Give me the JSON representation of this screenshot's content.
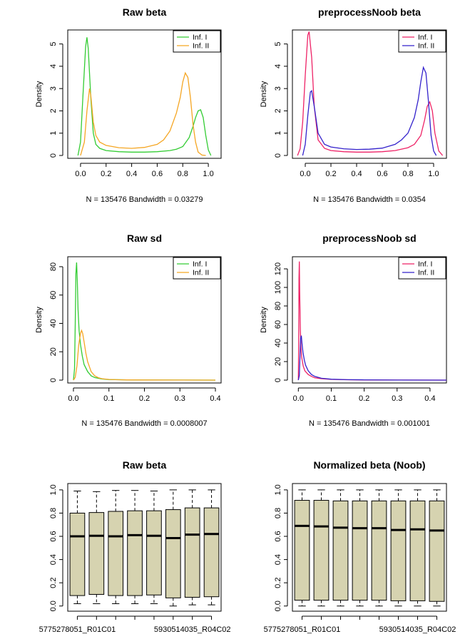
{
  "figure": {
    "background": "#ffffff"
  },
  "chart_data": [
    {
      "type": "density",
      "title": "Raw beta",
      "ylabel": "Density",
      "xlabel": "N = 135476   Bandwidth = 0.03279",
      "xlim": [
        -0.1,
        1.1
      ],
      "ylim": [
        0,
        5.5
      ],
      "xticks": [
        0.0,
        0.2,
        0.4,
        0.6,
        0.8,
        1.0
      ],
      "xtick_labels": [
        "0.0",
        "0.2",
        "0.4",
        "0.6",
        "0.8",
        "1.0"
      ],
      "yticks": [
        0,
        1,
        2,
        3,
        4,
        5
      ],
      "ytick_labels": [
        "0",
        "1",
        "2",
        "3",
        "4",
        "5"
      ],
      "legend_position": "top-right",
      "series": [
        {
          "name": "Inf. I",
          "color": "#33cc33",
          "x": [
            -0.02,
            0.0,
            0.02,
            0.04,
            0.05,
            0.06,
            0.08,
            0.1,
            0.12,
            0.15,
            0.2,
            0.3,
            0.4,
            0.5,
            0.6,
            0.7,
            0.75,
            0.8,
            0.85,
            0.88,
            0.9,
            0.92,
            0.94,
            0.96,
            0.98,
            1.0,
            1.02
          ],
          "y": [
            0.0,
            0.6,
            2.8,
            4.9,
            5.3,
            4.8,
            2.6,
            1.0,
            0.5,
            0.32,
            0.22,
            0.17,
            0.15,
            0.15,
            0.17,
            0.22,
            0.28,
            0.4,
            0.8,
            1.3,
            1.7,
            2.0,
            2.05,
            1.7,
            0.9,
            0.25,
            0.0
          ]
        },
        {
          "name": "Inf. II",
          "color": "#f5a623",
          "x": [
            0.0,
            0.03,
            0.05,
            0.07,
            0.08,
            0.1,
            0.12,
            0.15,
            0.2,
            0.3,
            0.4,
            0.5,
            0.6,
            0.65,
            0.7,
            0.75,
            0.78,
            0.8,
            0.82,
            0.84,
            0.86,
            0.88,
            0.9,
            0.92,
            0.95,
            0.98
          ],
          "y": [
            0.0,
            0.6,
            2.0,
            3.0,
            2.7,
            1.5,
            0.9,
            0.6,
            0.45,
            0.35,
            0.32,
            0.36,
            0.5,
            0.7,
            1.1,
            1.9,
            2.6,
            3.3,
            3.7,
            3.5,
            2.6,
            1.4,
            0.6,
            0.15,
            0.02,
            0.0
          ]
        }
      ]
    },
    {
      "type": "density",
      "title": "preprocessNoob beta",
      "ylabel": "Density",
      "xlabel": "N = 135476   Bandwidth = 0.0354",
      "xlim": [
        -0.1,
        1.1
      ],
      "ylim": [
        0,
        5.5
      ],
      "xticks": [
        0.0,
        0.2,
        0.4,
        0.6,
        0.8,
        1.0
      ],
      "xtick_labels": [
        "0.0",
        "0.2",
        "0.4",
        "0.6",
        "0.8",
        "1.0"
      ],
      "yticks": [
        0,
        1,
        2,
        3,
        4,
        5
      ],
      "ytick_labels": [
        "0",
        "1",
        "2",
        "3",
        "4",
        "5"
      ],
      "legend_position": "top-right",
      "series": [
        {
          "name": "Inf. I",
          "color": "#ee2266",
          "x": [
            -0.06,
            -0.04,
            -0.02,
            0.0,
            0.02,
            0.03,
            0.05,
            0.07,
            0.1,
            0.15,
            0.2,
            0.3,
            0.4,
            0.5,
            0.6,
            0.7,
            0.8,
            0.85,
            0.9,
            0.93,
            0.95,
            0.97,
            0.99,
            1.01,
            1.04,
            1.07
          ],
          "y": [
            0.0,
            0.3,
            1.5,
            3.6,
            5.4,
            5.55,
            4.4,
            2.2,
            0.7,
            0.32,
            0.22,
            0.17,
            0.15,
            0.15,
            0.17,
            0.22,
            0.35,
            0.5,
            0.9,
            1.6,
            2.2,
            2.4,
            2.0,
            1.0,
            0.2,
            0.0
          ]
        },
        {
          "name": "Inf. II",
          "color": "#3322cc",
          "x": [
            -0.02,
            0.0,
            0.02,
            0.04,
            0.05,
            0.07,
            0.1,
            0.15,
            0.2,
            0.3,
            0.4,
            0.5,
            0.6,
            0.7,
            0.75,
            0.8,
            0.85,
            0.88,
            0.9,
            0.92,
            0.94,
            0.96,
            0.98,
            1.0,
            1.02
          ],
          "y": [
            0.0,
            0.5,
            1.8,
            2.85,
            2.9,
            2.2,
            1.0,
            0.5,
            0.38,
            0.3,
            0.27,
            0.28,
            0.33,
            0.5,
            0.7,
            1.0,
            1.7,
            2.5,
            3.3,
            3.95,
            3.7,
            2.4,
            0.9,
            0.2,
            0.0
          ]
        }
      ]
    },
    {
      "type": "density",
      "title": "Raw sd",
      "ylabel": "Density",
      "xlabel": "N = 135476   Bandwidth = 0.0008007",
      "xlim": [
        -0.016,
        0.416
      ],
      "ylim": [
        0,
        85
      ],
      "xticks": [
        0.0,
        0.1,
        0.2,
        0.3,
        0.4
      ],
      "xtick_labels": [
        "0.0",
        "0.1",
        "0.2",
        "0.3",
        "0.4"
      ],
      "yticks": [
        0,
        20,
        40,
        60,
        80
      ],
      "ytick_labels": [
        "0",
        "20",
        "40",
        "60",
        "80"
      ],
      "legend_position": "top-right",
      "series": [
        {
          "name": "Inf. I",
          "color": "#33cc33",
          "x": [
            0.0,
            0.003,
            0.005,
            0.007,
            0.009,
            0.011,
            0.013,
            0.016,
            0.02,
            0.025,
            0.03,
            0.04,
            0.05,
            0.06,
            0.08,
            0.1,
            0.15,
            0.2,
            0.3,
            0.4
          ],
          "y": [
            0.0,
            8,
            40,
            75,
            83,
            70,
            50,
            35,
            25,
            17,
            11,
            6,
            3,
            1.8,
            0.8,
            0.4,
            0.2,
            0.1,
            0.05,
            0.0
          ]
        },
        {
          "name": "Inf. II",
          "color": "#f5a623",
          "x": [
            0.0,
            0.005,
            0.01,
            0.015,
            0.02,
            0.023,
            0.026,
            0.03,
            0.035,
            0.04,
            0.05,
            0.06,
            0.07,
            0.08,
            0.1,
            0.12,
            0.15,
            0.2,
            0.3,
            0.4
          ],
          "y": [
            0.0,
            2,
            10,
            25,
            33,
            35,
            33,
            27,
            19,
            13,
            6,
            3,
            1.7,
            1.0,
            0.5,
            0.3,
            0.15,
            0.08,
            0.03,
            0.0
          ]
        }
      ]
    },
    {
      "type": "density",
      "title": "preprocessNoob sd",
      "ylabel": "Density",
      "xlabel": "N = 135476   Bandwidth = 0.001001",
      "xlim": [
        -0.018,
        0.45
      ],
      "ylim": [
        0,
        130
      ],
      "xticks": [
        0.0,
        0.1,
        0.2,
        0.3,
        0.4
      ],
      "xtick_labels": [
        "0.0",
        "0.1",
        "0.2",
        "0.3",
        "0.4"
      ],
      "yticks": [
        0,
        20,
        40,
        60,
        80,
        100,
        120
      ],
      "ytick_labels": [
        "0",
        "20",
        "40",
        "60",
        "80",
        "100",
        "120"
      ],
      "legend_position": "top-right",
      "series": [
        {
          "name": "Inf. I",
          "color": "#ee2266",
          "x": [
            0.0,
            0.001,
            0.002,
            0.003,
            0.004,
            0.006,
            0.008,
            0.01,
            0.015,
            0.02,
            0.03,
            0.04,
            0.05,
            0.07,
            0.1,
            0.15,
            0.2,
            0.3,
            0.45
          ],
          "y": [
            0.0,
            40,
            110,
            128,
            95,
            55,
            35,
            25,
            15,
            10,
            6,
            4,
            2.5,
            1.5,
            0.8,
            0.4,
            0.2,
            0.1,
            0.0
          ]
        },
        {
          "name": "Inf. II",
          "color": "#3322cc",
          "x": [
            0.0,
            0.003,
            0.005,
            0.007,
            0.009,
            0.011,
            0.014,
            0.018,
            0.022,
            0.03,
            0.04,
            0.05,
            0.07,
            0.1,
            0.15,
            0.2,
            0.3,
            0.45
          ],
          "y": [
            0.0,
            5,
            25,
            45,
            48,
            40,
            30,
            22,
            16,
            10,
            6,
            4,
            2,
            1,
            0.5,
            0.3,
            0.1,
            0.0
          ]
        }
      ]
    },
    {
      "type": "boxplot",
      "title": "Raw beta",
      "ylim": [
        -0.02,
        1.03
      ],
      "yticks": [
        0.0,
        0.2,
        0.4,
        0.6,
        0.8,
        1.0
      ],
      "ytick_labels": [
        "0.0",
        "0.2",
        "0.4",
        "0.6",
        "0.8",
        "1.0"
      ],
      "box_color": "#d6d3b0",
      "tick_label_first": "5775278051_R01C01",
      "tick_label_last": "5930514035_R04C02",
      "boxes": [
        {
          "whisker_low": 0.02,
          "q1": 0.09,
          "median": 0.6,
          "q3": 0.8,
          "whisker_high": 0.99
        },
        {
          "whisker_low": 0.02,
          "q1": 0.1,
          "median": 0.605,
          "q3": 0.805,
          "whisker_high": 0.985
        },
        {
          "whisker_low": 0.02,
          "q1": 0.09,
          "median": 0.6,
          "q3": 0.815,
          "whisker_high": 0.995
        },
        {
          "whisker_low": 0.02,
          "q1": 0.09,
          "median": 0.61,
          "q3": 0.82,
          "whisker_high": 0.995
        },
        {
          "whisker_low": 0.02,
          "q1": 0.095,
          "median": 0.605,
          "q3": 0.82,
          "whisker_high": 0.99
        },
        {
          "whisker_low": 0.0,
          "q1": 0.07,
          "median": 0.585,
          "q3": 0.83,
          "whisker_high": 1.0
        },
        {
          "whisker_low": 0.01,
          "q1": 0.075,
          "median": 0.615,
          "q3": 0.845,
          "whisker_high": 1.0
        },
        {
          "whisker_low": 0.01,
          "q1": 0.08,
          "median": 0.62,
          "q3": 0.845,
          "whisker_high": 1.0
        }
      ]
    },
    {
      "type": "boxplot",
      "title": "Normalized beta (Noob)",
      "ylim": [
        -0.02,
        1.03
      ],
      "yticks": [
        0.0,
        0.2,
        0.4,
        0.6,
        0.8,
        1.0
      ],
      "ytick_labels": [
        "0.0",
        "0.2",
        "0.4",
        "0.6",
        "0.8",
        "1.0"
      ],
      "box_color": "#d6d3b0",
      "tick_label_first": "5775278051_R01C01",
      "tick_label_last": "5930514035_R04C02",
      "boxes": [
        {
          "whisker_low": 0.0,
          "q1": 0.05,
          "median": 0.69,
          "q3": 0.91,
          "whisker_high": 1.0
        },
        {
          "whisker_low": 0.0,
          "q1": 0.05,
          "median": 0.685,
          "q3": 0.91,
          "whisker_high": 1.0
        },
        {
          "whisker_low": 0.0,
          "q1": 0.05,
          "median": 0.675,
          "q3": 0.905,
          "whisker_high": 1.0
        },
        {
          "whisker_low": 0.0,
          "q1": 0.05,
          "median": 0.67,
          "q3": 0.905,
          "whisker_high": 1.0
        },
        {
          "whisker_low": 0.0,
          "q1": 0.05,
          "median": 0.67,
          "q3": 0.905,
          "whisker_high": 1.0
        },
        {
          "whisker_low": 0.0,
          "q1": 0.045,
          "median": 0.655,
          "q3": 0.905,
          "whisker_high": 1.0
        },
        {
          "whisker_low": 0.0,
          "q1": 0.045,
          "median": 0.66,
          "q3": 0.905,
          "whisker_high": 1.0
        },
        {
          "whisker_low": 0.0,
          "q1": 0.04,
          "median": 0.65,
          "q3": 0.905,
          "whisker_high": 1.0
        }
      ]
    }
  ]
}
